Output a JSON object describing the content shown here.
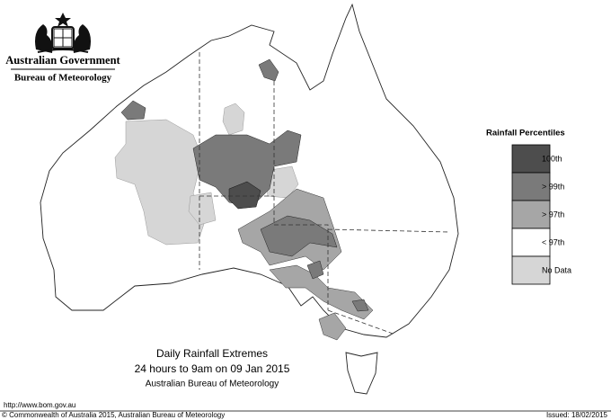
{
  "header": {
    "government": "Australian Government",
    "bureau": "Bureau of Meteorology"
  },
  "legend": {
    "title": "Rainfall Percentiles",
    "items": [
      {
        "label": "100th",
        "color": "#4d4d4d"
      },
      {
        "label": "> 99th",
        "color": "#7a7a7a"
      },
      {
        "label": "> 97th",
        "color": "#a6a6a6"
      },
      {
        "label": "< 97th",
        "color": "#ffffff"
      },
      {
        "label": "No Data",
        "color": "#d6d6d6"
      }
    ]
  },
  "caption": {
    "title": "Daily Rainfall Extremes",
    "period": "24 hours to 9am on 09 Jan 2015",
    "source": "Australian Bureau of Meteorology"
  },
  "footer": {
    "url": "http://www.bom.gov.au",
    "copyright": "© Commonwealth of Australia 2015, Australian Bureau of Meteorology",
    "issued": "Issued: 18/02/2015"
  }
}
